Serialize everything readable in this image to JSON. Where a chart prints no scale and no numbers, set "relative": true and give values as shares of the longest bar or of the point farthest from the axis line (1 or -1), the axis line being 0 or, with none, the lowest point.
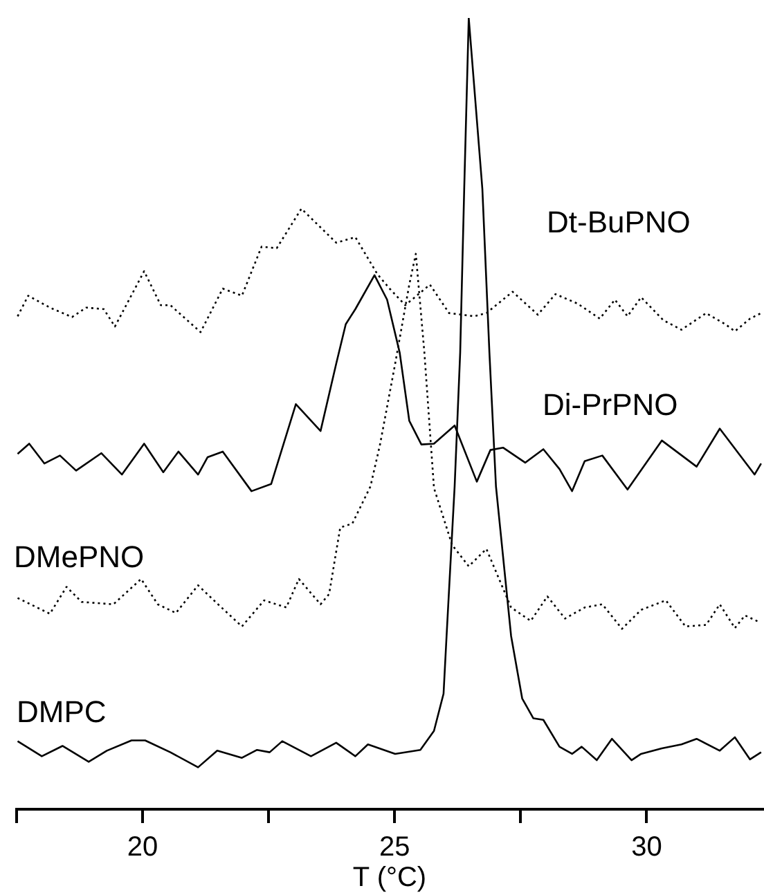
{
  "chart_data": {
    "type": "line",
    "relative": true,
    "xlabel": "T (°C)",
    "xlim": [
      17.5,
      32.3
    ],
    "xticks": [
      {
        "value": 17.5,
        "label": null
      },
      20,
      {
        "value": 22.5,
        "label": null
      },
      25,
      {
        "value": 27.5,
        "label": null
      },
      30
    ],
    "grid": false,
    "legend": false,
    "marker": "none",
    "tick_labels": "x",
    "series": [
      {
        "name": "Dt-BuPNO",
        "color": "#000000",
        "line_style": "dotted",
        "x": [
          17.52,
          17.73,
          18.16,
          18.6,
          18.88,
          19.23,
          19.45,
          20.03,
          20.36,
          20.55,
          21.15,
          21.59,
          21.97,
          22.36,
          22.66,
          23.15,
          23.84,
          24.22,
          24.66,
          24.9,
          25.21,
          25.7,
          26.08,
          26.58,
          26.82,
          27.34,
          27.84,
          28.19,
          28.63,
          29.07,
          29.37,
          29.62,
          29.89,
          30.33,
          30.69,
          31.18,
          31.56,
          31.75,
          32.05,
          32.27
        ],
        "values": [
          0.623,
          0.649,
          0.634,
          0.622,
          0.634,
          0.632,
          0.61,
          0.68,
          0.637,
          0.637,
          0.603,
          0.658,
          0.649,
          0.711,
          0.709,
          0.759,
          0.716,
          0.723,
          0.676,
          0.658,
          0.637,
          0.663,
          0.627,
          0.623,
          0.627,
          0.654,
          0.625,
          0.651,
          0.639,
          0.62,
          0.644,
          0.623,
          0.647,
          0.618,
          0.606,
          0.627,
          0.613,
          0.604,
          0.62,
          0.627
        ]
      },
      {
        "name": "Di-PrPNO",
        "color": "#000000",
        "line_style": "solid",
        "x": [
          17.52,
          17.75,
          18.05,
          18.36,
          18.68,
          19.18,
          19.59,
          20.03,
          20.41,
          20.71,
          21.1,
          21.29,
          21.59,
          22.16,
          22.55,
          23.04,
          23.53,
          23.84,
          24.03,
          24.22,
          24.6,
          24.85,
          25.1,
          25.29,
          25.53,
          25.78,
          26.19,
          26.63,
          26.9,
          27.15,
          27.59,
          27.95,
          28.27,
          28.52,
          28.77,
          29.12,
          29.62,
          30.3,
          30.99,
          31.45,
          32.14,
          32.27
        ],
        "values": [
          0.449,
          0.462,
          0.437,
          0.447,
          0.428,
          0.45,
          0.423,
          0.462,
          0.426,
          0.452,
          0.423,
          0.445,
          0.452,
          0.402,
          0.411,
          0.512,
          0.478,
          0.563,
          0.613,
          0.632,
          0.675,
          0.644,
          0.577,
          0.491,
          0.461,
          0.462,
          0.485,
          0.414,
          0.454,
          0.457,
          0.438,
          0.455,
          0.43,
          0.402,
          0.44,
          0.447,
          0.404,
          0.466,
          0.433,
          0.481,
          0.423,
          0.437
        ]
      },
      {
        "name": "DMePNO",
        "color": "#000000",
        "line_style": "dotted",
        "x": [
          17.52,
          18.16,
          18.49,
          18.79,
          19.42,
          19.97,
          20.3,
          20.66,
          21.1,
          21.48,
          21.97,
          22.41,
          22.85,
          23.1,
          23.53,
          23.7,
          23.92,
          24.16,
          24.52,
          24.71,
          25.01,
          25.29,
          25.42,
          25.59,
          25.78,
          26.14,
          26.47,
          26.82,
          27.31,
          27.7,
          28.03,
          28.38,
          28.77,
          29.12,
          29.51,
          29.89,
          30.38,
          30.77,
          31.18,
          31.45,
          31.75,
          31.95,
          32.25
        ],
        "values": [
          0.267,
          0.247,
          0.281,
          0.262,
          0.259,
          0.291,
          0.259,
          0.248,
          0.283,
          0.26,
          0.231,
          0.264,
          0.255,
          0.291,
          0.259,
          0.272,
          0.356,
          0.361,
          0.408,
          0.461,
          0.563,
          0.663,
          0.702,
          0.577,
          0.406,
          0.334,
          0.307,
          0.329,
          0.255,
          0.238,
          0.269,
          0.241,
          0.255,
          0.259,
          0.228,
          0.252,
          0.264,
          0.231,
          0.233,
          0.259,
          0.229,
          0.245,
          0.236
        ]
      },
      {
        "name": "DMPC",
        "color": "#000000",
        "line_style": "solid",
        "x": [
          17.52,
          18.0,
          18.41,
          18.93,
          19.29,
          19.78,
          20.05,
          20.55,
          21.1,
          21.48,
          21.97,
          22.27,
          22.52,
          22.77,
          23.34,
          23.84,
          24.22,
          24.47,
          25.01,
          25.51,
          25.78,
          25.97,
          26.03,
          26.19,
          26.3,
          26.38,
          26.47,
          26.74,
          26.88,
          27.01,
          27.31,
          27.53,
          27.75,
          27.95,
          28.27,
          28.52,
          28.71,
          29.01,
          29.31,
          29.7,
          29.89,
          30.3,
          30.69,
          30.99,
          31.45,
          31.75,
          32.05,
          32.27
        ],
        "values": [
          0.086,
          0.067,
          0.08,
          0.06,
          0.074,
          0.087,
          0.087,
          0.072,
          0.053,
          0.074,
          0.065,
          0.075,
          0.072,
          0.086,
          0.067,
          0.084,
          0.067,
          0.082,
          0.07,
          0.075,
          0.099,
          0.146,
          0.219,
          0.408,
          0.577,
          0.784,
          1.0,
          0.784,
          0.577,
          0.408,
          0.219,
          0.14,
          0.115,
          0.113,
          0.079,
          0.07,
          0.079,
          0.062,
          0.089,
          0.062,
          0.07,
          0.077,
          0.082,
          0.089,
          0.074,
          0.091,
          0.063,
          0.072
        ]
      }
    ]
  }
}
